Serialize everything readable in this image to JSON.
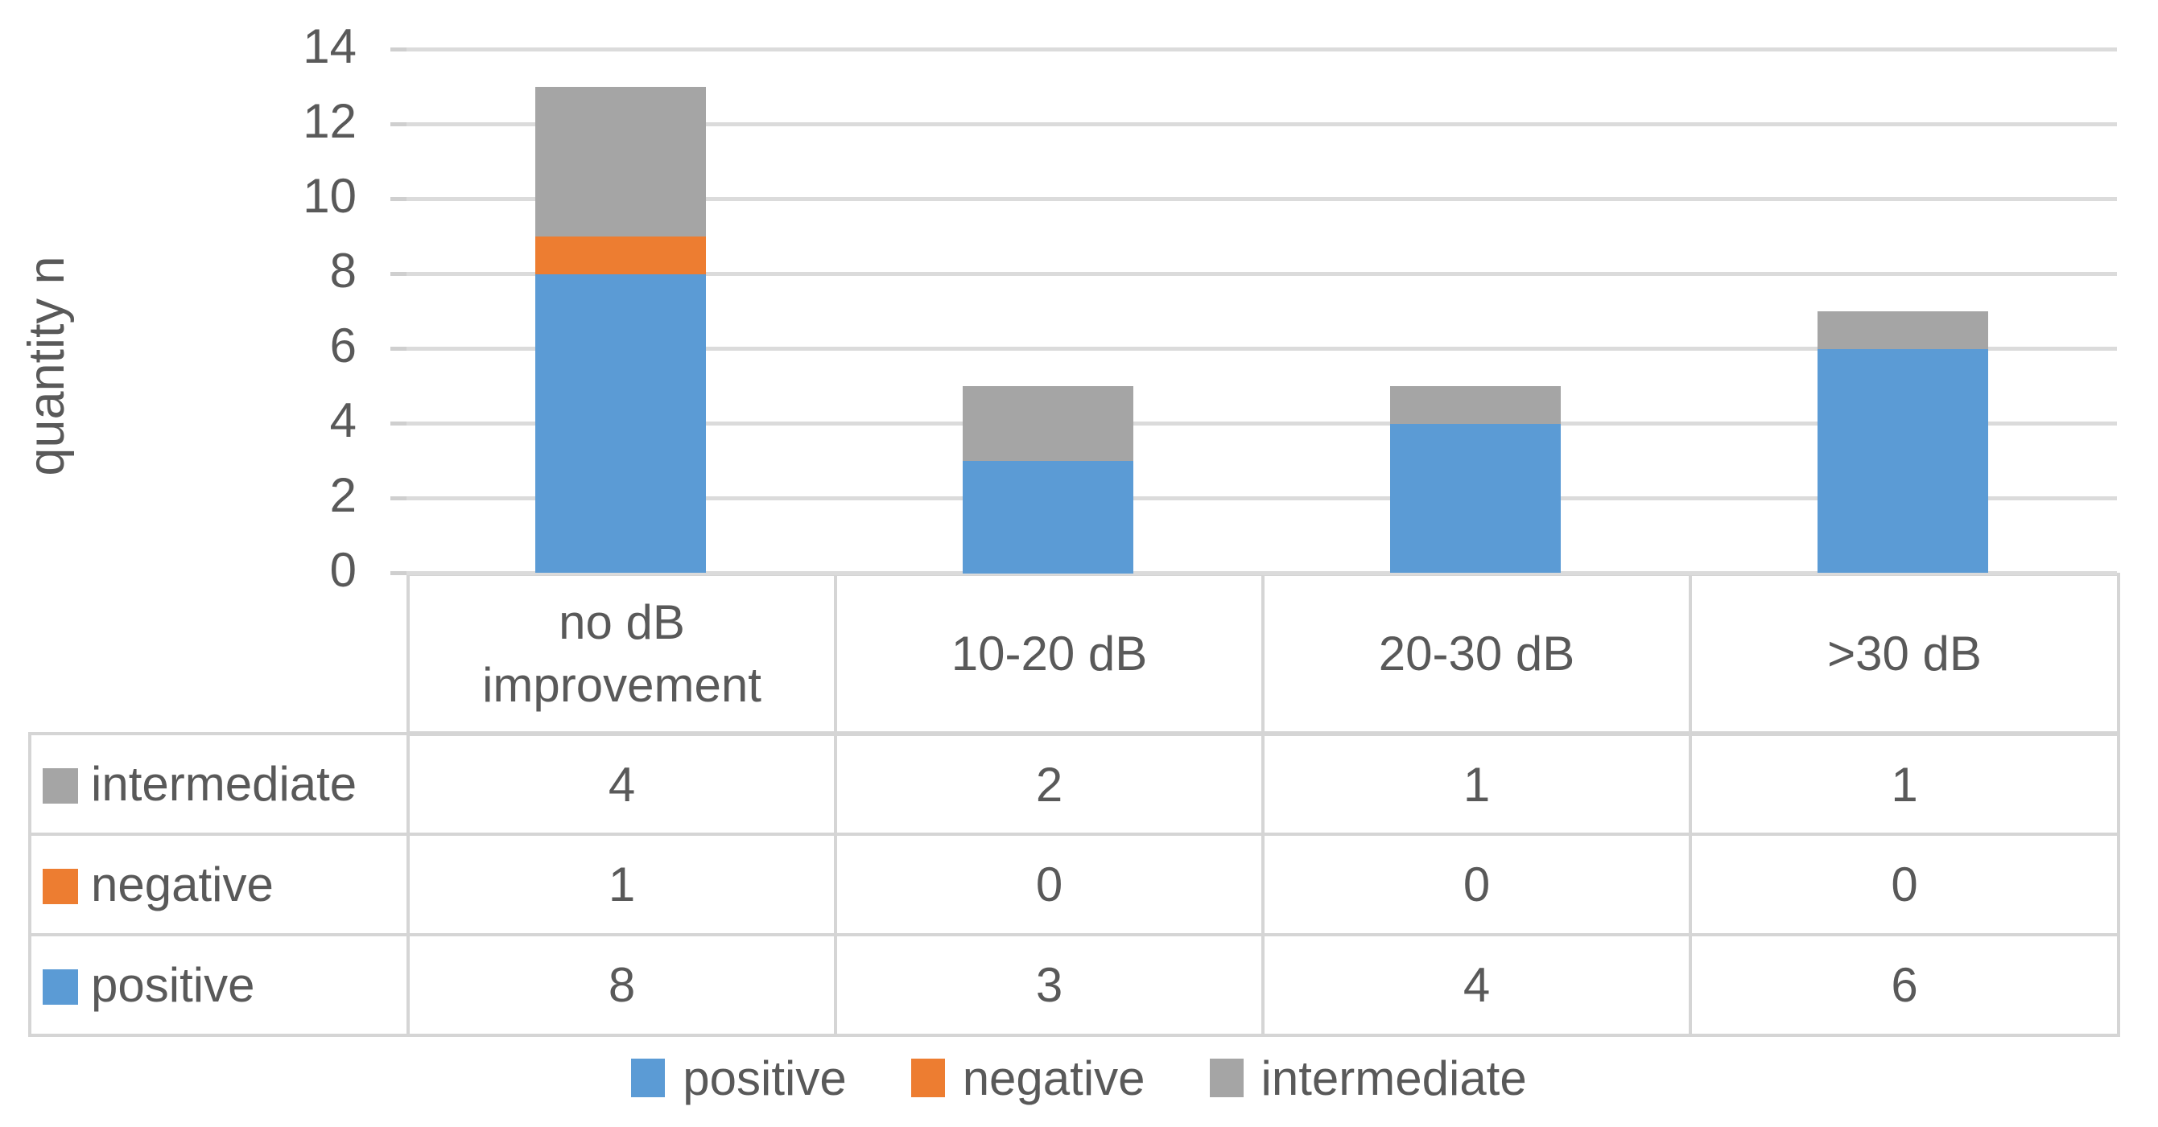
{
  "chart_data": {
    "type": "bar",
    "stacked": true,
    "y_axis_title": "quantity n",
    "categories": [
      "no dB\nimprovement",
      "10-20 dB",
      "20-30 dB",
      ">30 dB"
    ],
    "series": [
      {
        "name": "positive",
        "color": "#5B9BD5",
        "values": [
          8,
          3,
          4,
          6
        ]
      },
      {
        "name": "negative",
        "color": "#ED7D31",
        "values": [
          1,
          0,
          0,
          0
        ]
      },
      {
        "name": "intermediate",
        "color": "#A5A5A5",
        "values": [
          4,
          2,
          1,
          1
        ]
      }
    ],
    "ylim": [
      0,
      14
    ],
    "y_ticks": [
      "0",
      "2",
      "4",
      "6",
      "8",
      "10",
      "12",
      "14"
    ],
    "grid": true,
    "legend_position": "bottom",
    "data_table": {
      "rows": [
        {
          "label": "intermediate",
          "color": "#A5A5A5",
          "values": [
            "4",
            "2",
            "1",
            "1"
          ]
        },
        {
          "label": "negative",
          "color": "#ED7D31",
          "values": [
            "1",
            "0",
            "0",
            "0"
          ]
        },
        {
          "label": "positive",
          "color": "#5B9BD5",
          "values": [
            "8",
            "3",
            "4",
            "6"
          ]
        }
      ]
    },
    "colors": {
      "gridline": "#DBDBDB",
      "table_border": "#D5D5D5",
      "text": "#595959"
    }
  }
}
